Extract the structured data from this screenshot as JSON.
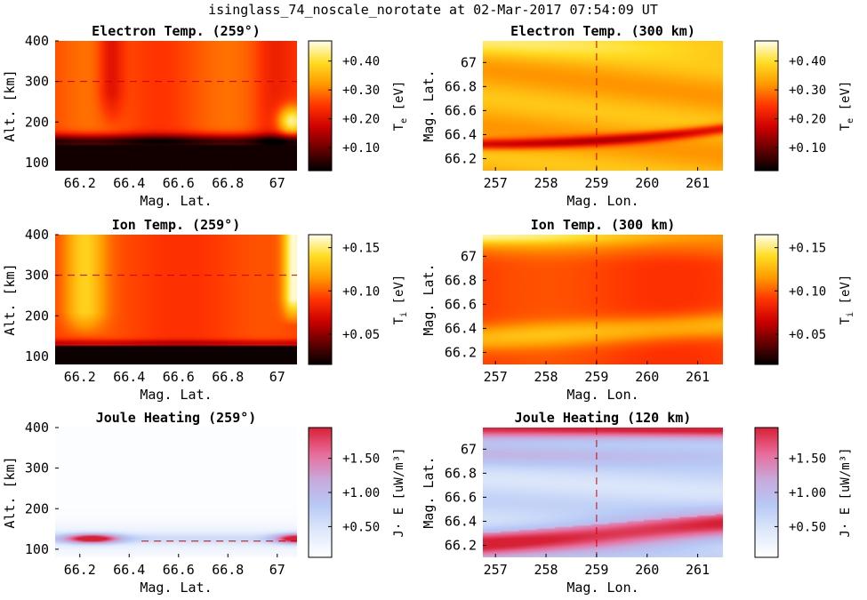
{
  "suptitle": "isinglass_74_noscale_norotate at 02-Mar-2017 07:54:09 UT",
  "colors": {
    "hot_colormap": [
      "#000000",
      "#660000",
      "#cc0000",
      "#ff3300",
      "#ff9900",
      "#ffdd22",
      "#ffffee"
    ],
    "joule_colormap": [
      "#ffffff",
      "#dfe9fb",
      "#b7c9f5",
      "#c8a9dc",
      "#e86c9a",
      "#d82035"
    ],
    "marker_line": "#cc0000"
  },
  "chart_data": [
    {
      "id": "te_alt",
      "type": "heatmap",
      "title": "Electron Temp. (259°)",
      "xlabel": "Mag. Lat.",
      "ylabel": "Alt. [km]",
      "xlim": [
        66.1,
        67.08
      ],
      "ylim": [
        80,
        400
      ],
      "xticks": [
        66.2,
        66.4,
        66.6,
        66.8,
        67
      ],
      "xticklabels": [
        "66.2",
        "66.4",
        "66.6",
        "66.8",
        "67"
      ],
      "yticks": [
        100,
        200,
        300,
        400
      ],
      "yticklabels": [
        "100",
        "200",
        "300",
        "400"
      ],
      "marker": {
        "orientation": "horizontal",
        "value": 300
      },
      "colorbar": {
        "label": "T",
        "label_sub": "e",
        "unit": "[eV]",
        "range": [
          0.02,
          0.47
        ],
        "ticks": [
          0.1,
          0.2,
          0.3,
          0.4
        ],
        "ticklabels": [
          "+0.10",
          "+0.20",
          "+0.30",
          "+0.40"
        ],
        "colormap": "hot"
      }
    },
    {
      "id": "te_map",
      "type": "heatmap",
      "title": "Electron Temp. (300 km)",
      "xlabel": "Mag. Lon.",
      "ylabel": "Mag. Lat.",
      "xlim": [
        256.75,
        261.5
      ],
      "ylim": [
        66.1,
        67.18
      ],
      "xticks": [
        257,
        258,
        259,
        260,
        261
      ],
      "xticklabels": [
        "257",
        "258",
        "259",
        "260",
        "261"
      ],
      "yticks": [
        66.2,
        66.4,
        66.6,
        66.8,
        67
      ],
      "yticklabels": [
        "66.2",
        "66.4",
        "66.6",
        "66.8",
        "67"
      ],
      "marker": {
        "orientation": "vertical",
        "value": 259
      },
      "colorbar": {
        "label": "T",
        "label_sub": "e",
        "unit": "[eV]",
        "range": [
          0.02,
          0.47
        ],
        "ticks": [
          0.1,
          0.2,
          0.3,
          0.4
        ],
        "ticklabels": [
          "+0.10",
          "+0.20",
          "+0.30",
          "+0.40"
        ],
        "colormap": "hot"
      }
    },
    {
      "id": "ti_alt",
      "type": "heatmap",
      "title": "Ion Temp. (259°)",
      "xlabel": "Mag. Lat.",
      "ylabel": "Alt. [km]",
      "xlim": [
        66.1,
        67.08
      ],
      "ylim": [
        80,
        400
      ],
      "xticks": [
        66.2,
        66.4,
        66.6,
        66.8,
        67
      ],
      "xticklabels": [
        "66.2",
        "66.4",
        "66.6",
        "66.8",
        "67"
      ],
      "yticks": [
        100,
        200,
        300,
        400
      ],
      "yticklabels": [
        "100",
        "200",
        "300",
        "400"
      ],
      "marker": {
        "orientation": "horizontal",
        "value": 300
      },
      "colorbar": {
        "label": "T",
        "label_sub": "i",
        "unit": "[eV]",
        "range": [
          0.015,
          0.165
        ],
        "ticks": [
          0.05,
          0.1,
          0.15
        ],
        "ticklabels": [
          "+0.05",
          "+0.10",
          "+0.15"
        ],
        "colormap": "hot"
      }
    },
    {
      "id": "ti_map",
      "type": "heatmap",
      "title": "Ion Temp. (300 km)",
      "xlabel": "Mag. Lon.",
      "ylabel": "Mag. Lat.",
      "xlim": [
        256.75,
        261.5
      ],
      "ylim": [
        66.1,
        67.18
      ],
      "xticks": [
        257,
        258,
        259,
        260,
        261
      ],
      "xticklabels": [
        "257",
        "258",
        "259",
        "260",
        "261"
      ],
      "yticks": [
        66.2,
        66.4,
        66.6,
        66.8,
        67
      ],
      "yticklabels": [
        "66.2",
        "66.4",
        "66.6",
        "66.8",
        "67"
      ],
      "marker": {
        "orientation": "vertical",
        "value": 259
      },
      "colorbar": {
        "label": "T",
        "label_sub": "i",
        "unit": "[eV]",
        "range": [
          0.015,
          0.165
        ],
        "ticks": [
          0.05,
          0.1,
          0.15
        ],
        "ticklabels": [
          "+0.05",
          "+0.10",
          "+0.15"
        ],
        "colormap": "hot"
      }
    },
    {
      "id": "jh_alt",
      "type": "heatmap",
      "title": "Joule Heating (259°)",
      "xlabel": "Mag. Lat.",
      "ylabel": "Alt. [km]",
      "xlim": [
        66.1,
        67.08
      ],
      "ylim": [
        80,
        400
      ],
      "xticks": [
        66.2,
        66.4,
        66.6,
        66.8,
        67
      ],
      "xticklabels": [
        "66.2",
        "66.4",
        "66.6",
        "66.8",
        "67"
      ],
      "yticks": [
        100,
        200,
        300,
        400
      ],
      "yticklabels": [
        "100",
        "200",
        "300",
        "400"
      ],
      "marker": {
        "orientation": "horizontal",
        "value": 120
      },
      "colorbar": {
        "label": "J· E",
        "label_sub": "",
        "unit": "[uW/m³]",
        "range": [
          0.05,
          1.95
        ],
        "ticks": [
          0.5,
          1.0,
          1.5
        ],
        "ticklabels": [
          "+0.50",
          "+1.00",
          "+1.50"
        ],
        "colormap": "joule"
      }
    },
    {
      "id": "jh_map",
      "type": "heatmap",
      "title": "Joule Heating (120 km)",
      "xlabel": "Mag. Lon.",
      "ylabel": "Mag. Lat.",
      "xlim": [
        256.75,
        261.5
      ],
      "ylim": [
        66.1,
        67.18
      ],
      "xticks": [
        257,
        258,
        259,
        260,
        261
      ],
      "xticklabels": [
        "257",
        "258",
        "259",
        "260",
        "261"
      ],
      "yticks": [
        66.2,
        66.4,
        66.6,
        66.8,
        67
      ],
      "yticklabels": [
        "66.2",
        "66.4",
        "66.6",
        "66.8",
        "67"
      ],
      "marker": {
        "orientation": "vertical",
        "value": 259
      },
      "colorbar": {
        "label": "J· E",
        "label_sub": "",
        "unit": "[uW/m³]",
        "range": [
          0.05,
          1.95
        ],
        "ticks": [
          0.5,
          1.0,
          1.5
        ],
        "ticklabels": [
          "+0.50",
          "+1.00",
          "+1.50"
        ],
        "colormap": "joule"
      }
    }
  ]
}
